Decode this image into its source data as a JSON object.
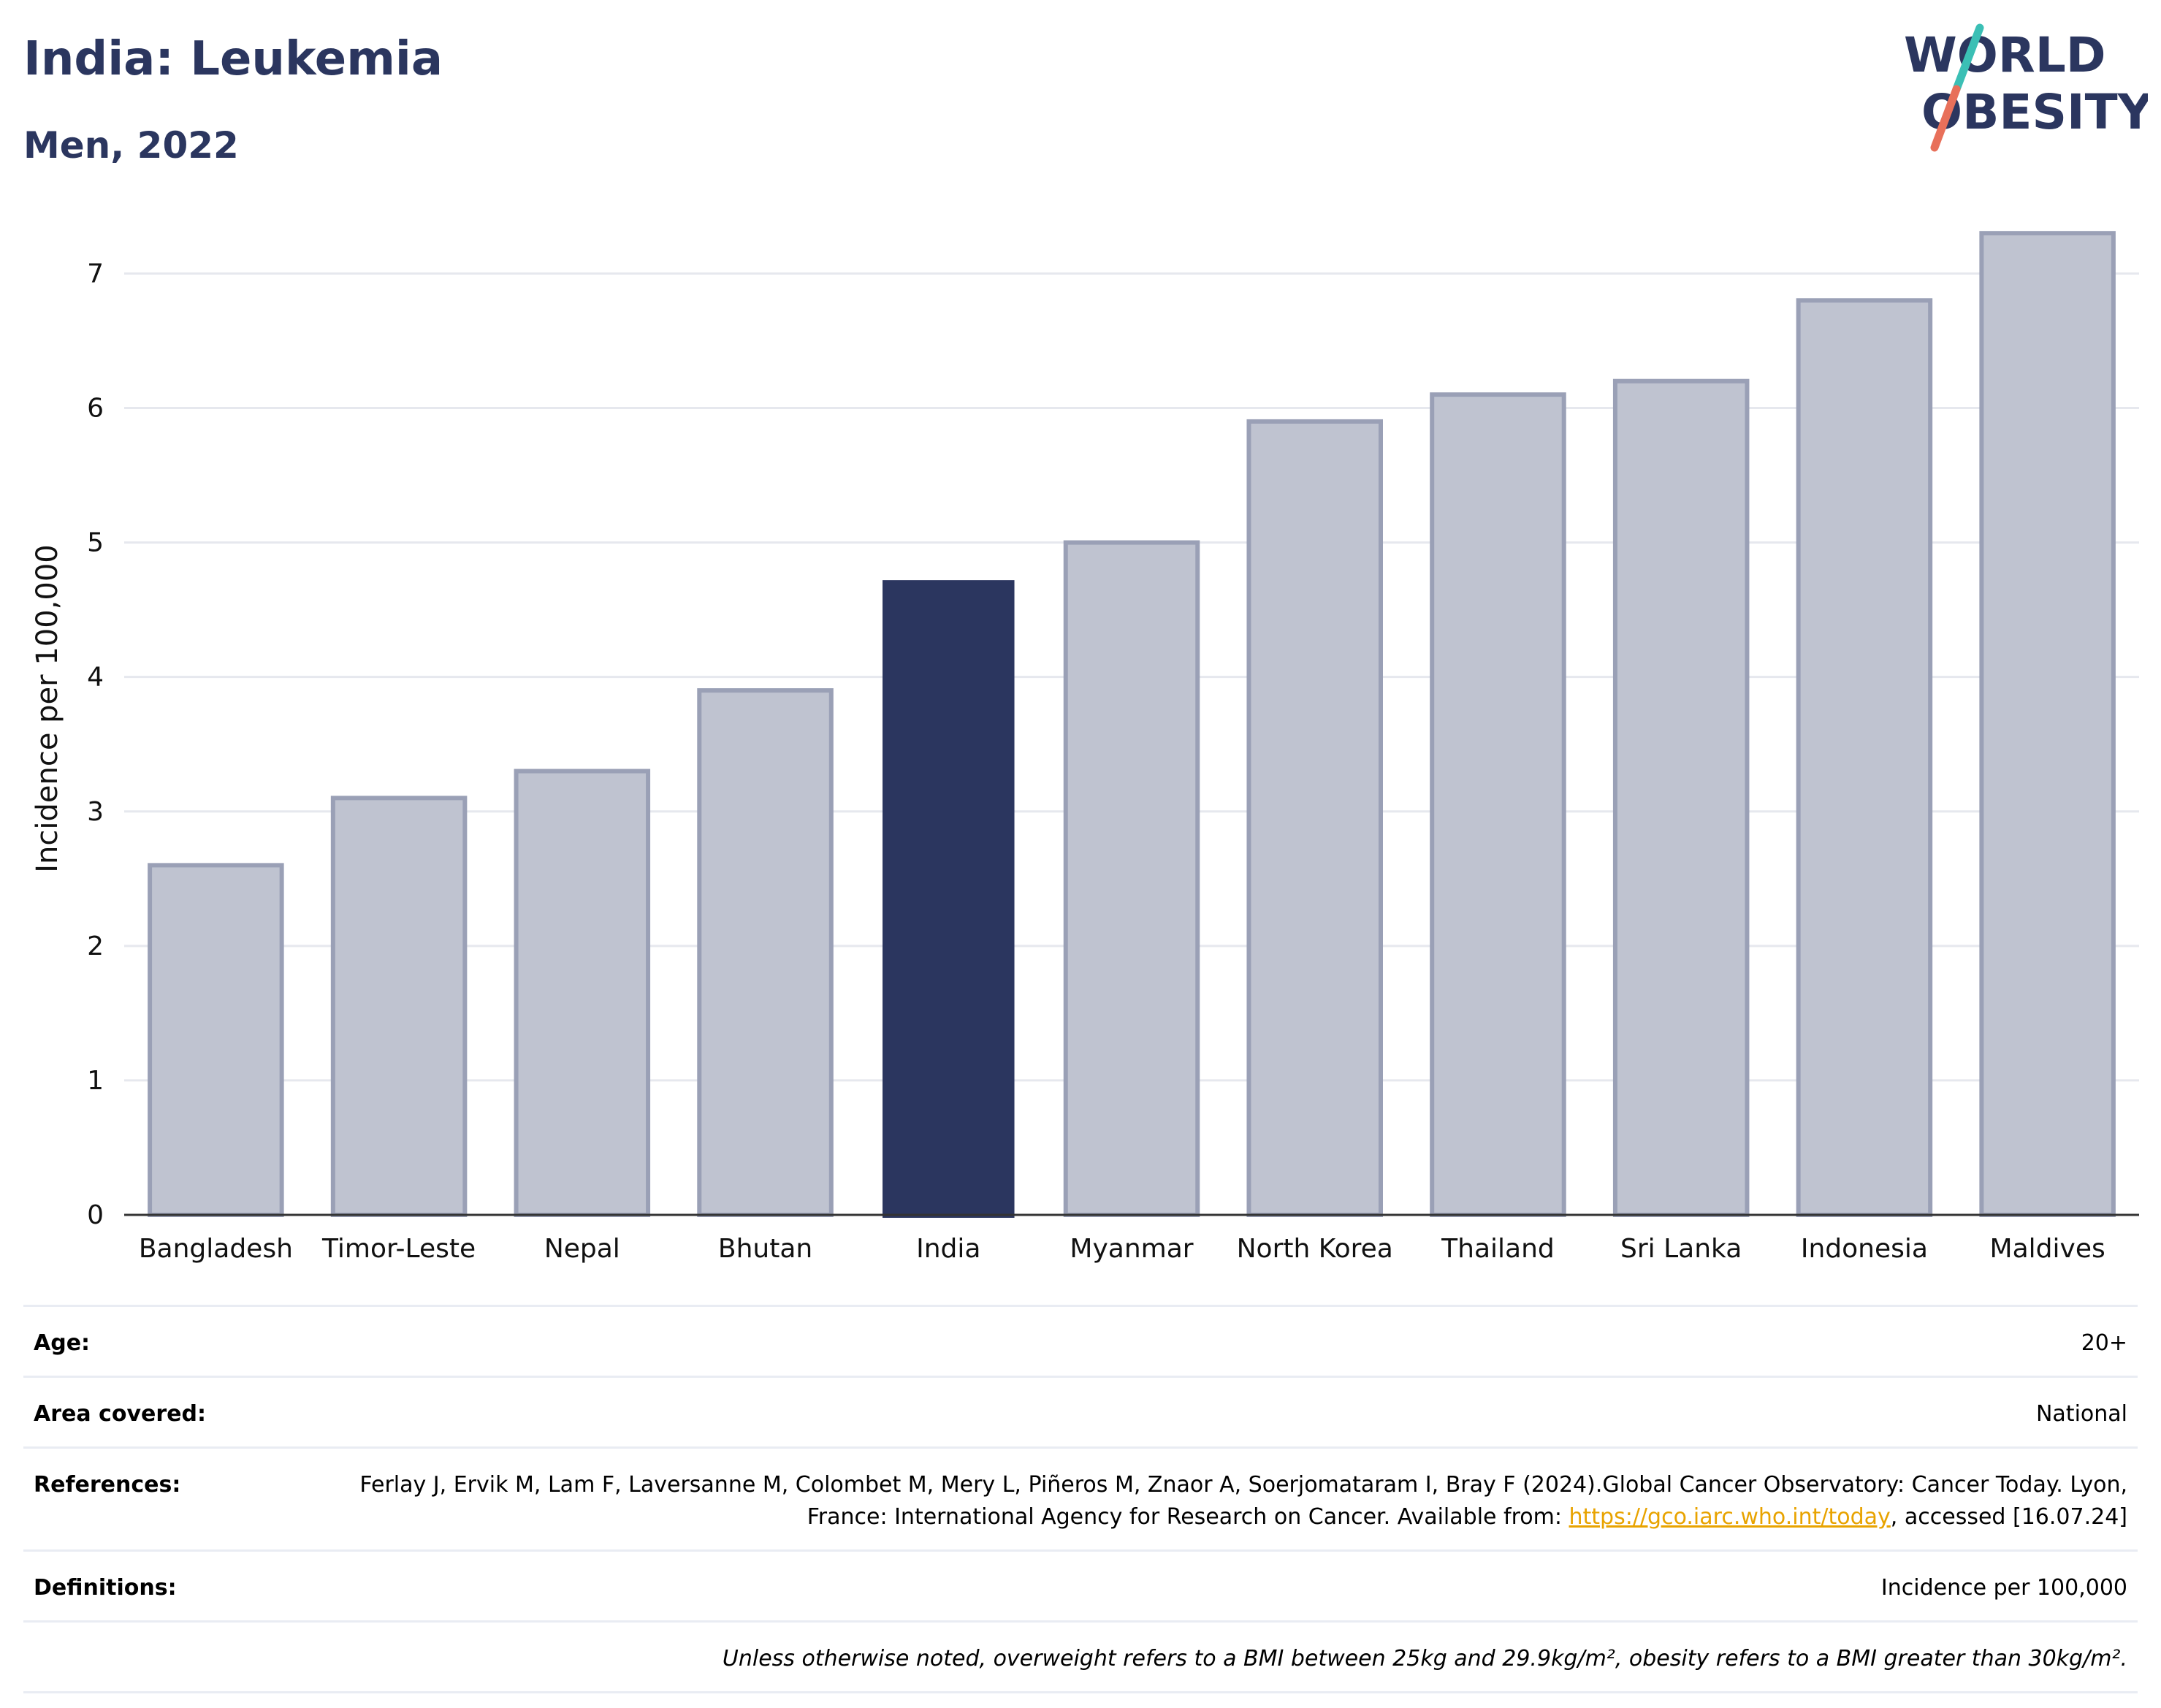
{
  "header": {
    "title": "India: Leukemia",
    "subtitle": "Men, 2022"
  },
  "logo": {
    "line1": "WORLD",
    "line2": "OBESITY",
    "slash_colors": [
      "#3bbfb5",
      "#e8705a"
    ],
    "text_color": "#2b365f"
  },
  "chart_data": {
    "type": "bar",
    "categories": [
      "Bangladesh",
      "Timor-Leste",
      "Nepal",
      "Bhutan",
      "India",
      "Myanmar",
      "North Korea",
      "Thailand",
      "Sri Lanka",
      "Indonesia",
      "Maldives"
    ],
    "values": [
      2.6,
      3.1,
      3.3,
      3.9,
      4.72,
      5.0,
      5.9,
      6.1,
      6.2,
      6.8,
      7.3
    ],
    "highlight": "India",
    "title": "India: Leukemia",
    "subtitle": "Men, 2022",
    "xlabel": "",
    "ylabel": "Incidence per 100,000",
    "ylim": [
      0,
      7.35
    ],
    "yticks": [
      0,
      1,
      2,
      3,
      4,
      5,
      6,
      7
    ],
    "grid": true,
    "legend": "none",
    "colors": {
      "highlight": "#2b365f",
      "bar_fill": "#bfc3d0",
      "bar_stroke": "#9aa0b6",
      "grid": "#e6e8ee",
      "axis": "#333333"
    }
  },
  "meta": {
    "age_label": "Age:",
    "age_value": "20+",
    "area_label": "Area covered:",
    "area_value": "National",
    "references_label": "References:",
    "references_text": "Ferlay J, Ervik M, Lam F, Laversanne M, Colombet M, Mery L, Piñeros M, Znaor A, Soerjomataram I, Bray F (2024).Global Cancer Observatory: Cancer Today. Lyon, France: International Agency for Research on Cancer. Available from:",
    "references_link": "https://gco.iarc.who.int/today",
    "references_suffix": ", accessed [16.07.24]",
    "definitions_label": "Definitions:",
    "definitions_value": "Incidence per 100,000",
    "note": "Unless otherwise noted, overweight refers to a BMI between 25kg and 29.9kg/m², obesity refers to a BMI greater than 30kg/m²."
  }
}
